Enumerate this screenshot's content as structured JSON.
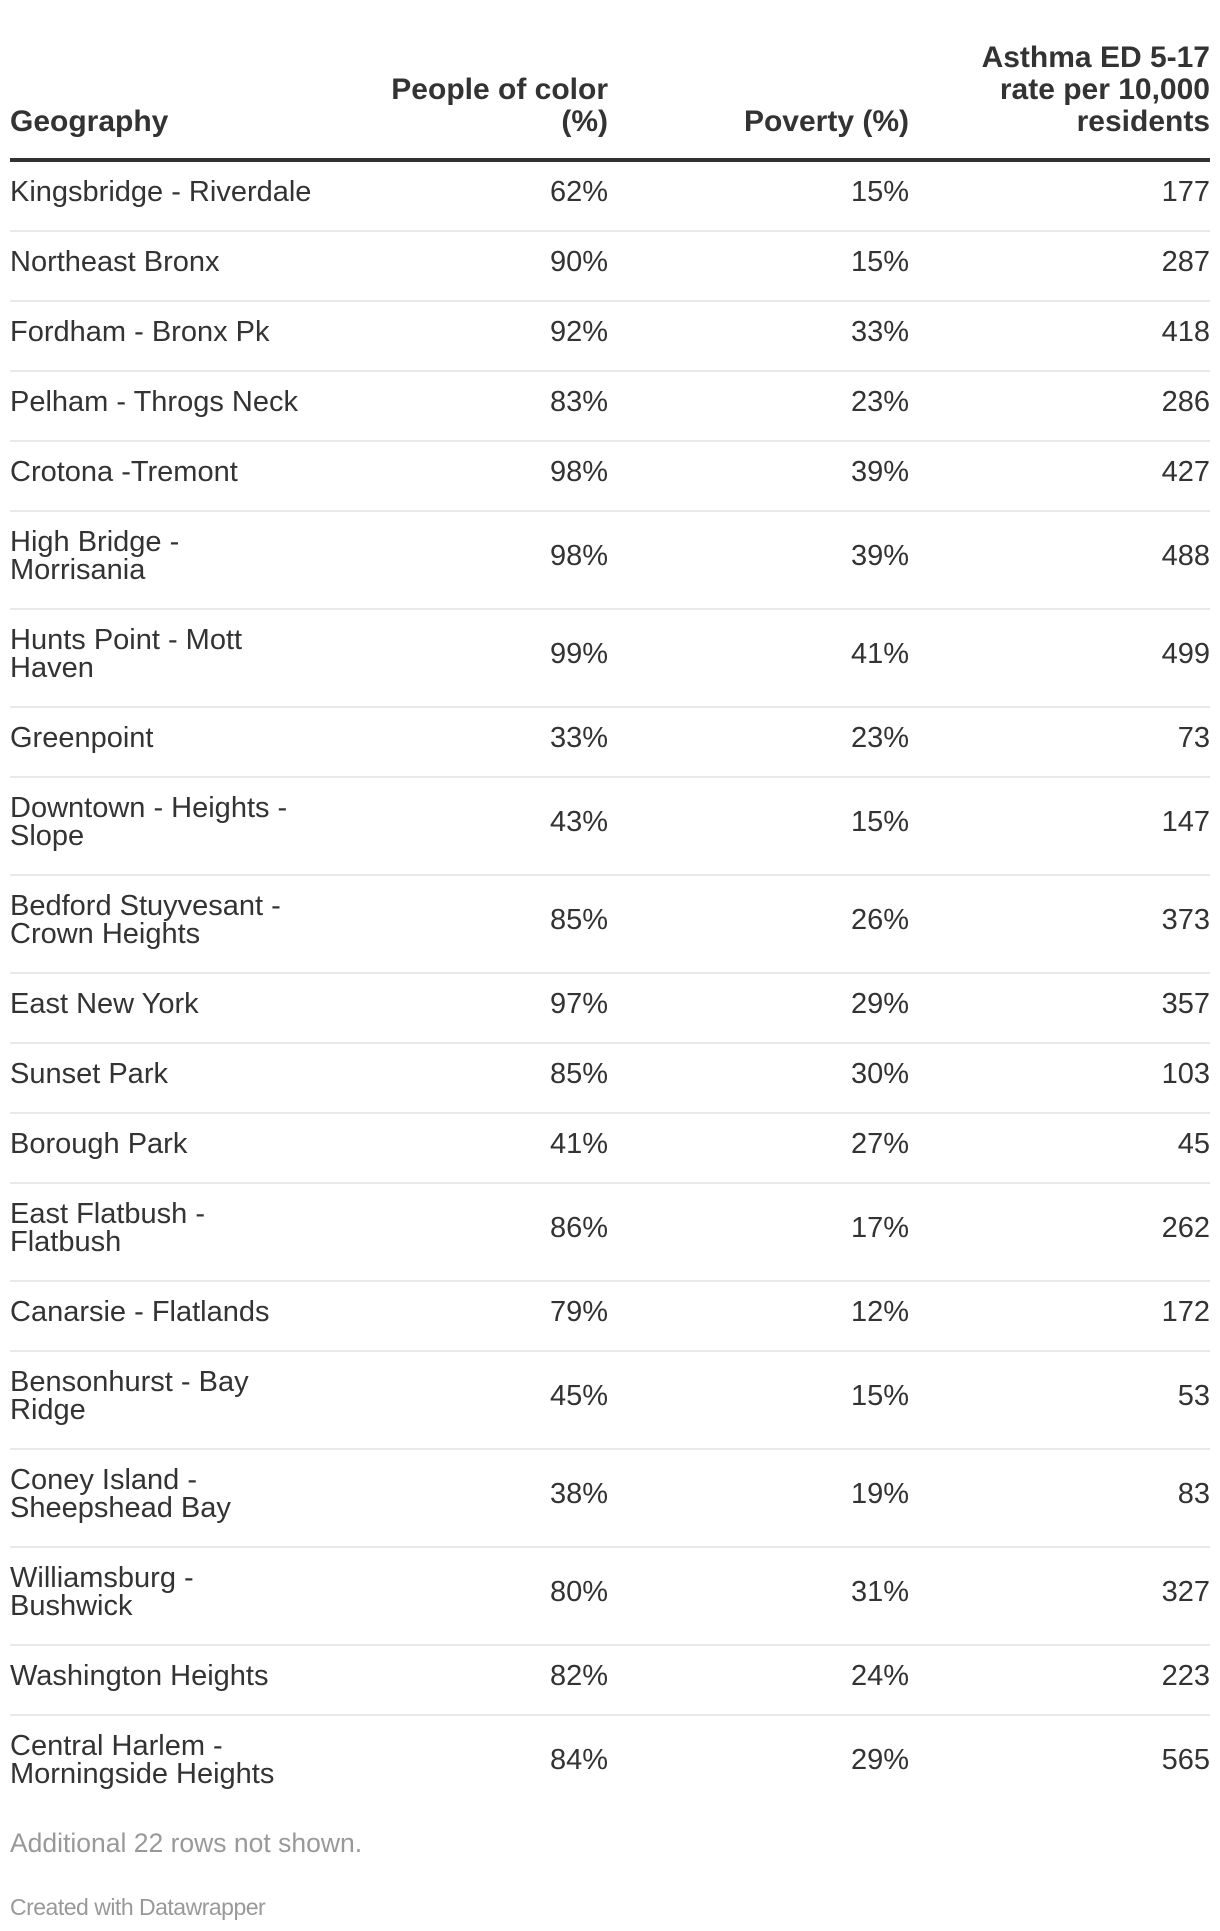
{
  "chart_data": {
    "type": "table",
    "columns": [
      {
        "label": "Geography",
        "align": "left"
      },
      {
        "label": "People of color\n(%)",
        "align": "right"
      },
      {
        "label": "Poverty (%)",
        "align": "right"
      },
      {
        "label": "Asthma ED 5-17\nrate per 10,000\nresidents",
        "align": "right"
      }
    ],
    "rows": [
      [
        "Kingsbridge - Riverdale",
        "62%",
        "15%",
        "177"
      ],
      [
        "Northeast Bronx",
        "90%",
        "15%",
        "287"
      ],
      [
        "Fordham - Bronx Pk",
        "92%",
        "33%",
        "418"
      ],
      [
        "Pelham - Throgs Neck",
        "83%",
        "23%",
        "286"
      ],
      [
        "Crotona -Tremont",
        "98%",
        "39%",
        "427"
      ],
      [
        "High Bridge -\nMorrisania",
        "98%",
        "39%",
        "488"
      ],
      [
        "Hunts Point - Mott\nHaven",
        "99%",
        "41%",
        "499"
      ],
      [
        "Greenpoint",
        "33%",
        "23%",
        "73"
      ],
      [
        "Downtown - Heights -\nSlope",
        "43%",
        "15%",
        "147"
      ],
      [
        "Bedford Stuyvesant -\nCrown Heights",
        "85%",
        "26%",
        "373"
      ],
      [
        "East New York",
        "97%",
        "29%",
        "357"
      ],
      [
        "Sunset Park",
        "85%",
        "30%",
        "103"
      ],
      [
        "Borough Park",
        "41%",
        "27%",
        "45"
      ],
      [
        "East Flatbush -\nFlatbush",
        "86%",
        "17%",
        "262"
      ],
      [
        "Canarsie - Flatlands",
        "79%",
        "12%",
        "172"
      ],
      [
        "Bensonhurst - Bay\nRidge",
        "45%",
        "15%",
        "53"
      ],
      [
        "Coney Island -\nSheepshead Bay",
        "38%",
        "19%",
        "83"
      ],
      [
        "Williamsburg -\nBushwick",
        "80%",
        "31%",
        "327"
      ],
      [
        "Washington Heights",
        "82%",
        "24%",
        "223"
      ],
      [
        "Central Harlem -\nMorningside Heights",
        "84%",
        "29%",
        "565"
      ]
    ]
  },
  "footer": {
    "note": "Additional 22 rows not shown.",
    "attribution": "Created with Datawrapper"
  },
  "colors": {
    "text": "#333333",
    "rule": "#333333",
    "separator": "#e9e9e9",
    "muted": "#999999",
    "background": "#ffffff"
  }
}
